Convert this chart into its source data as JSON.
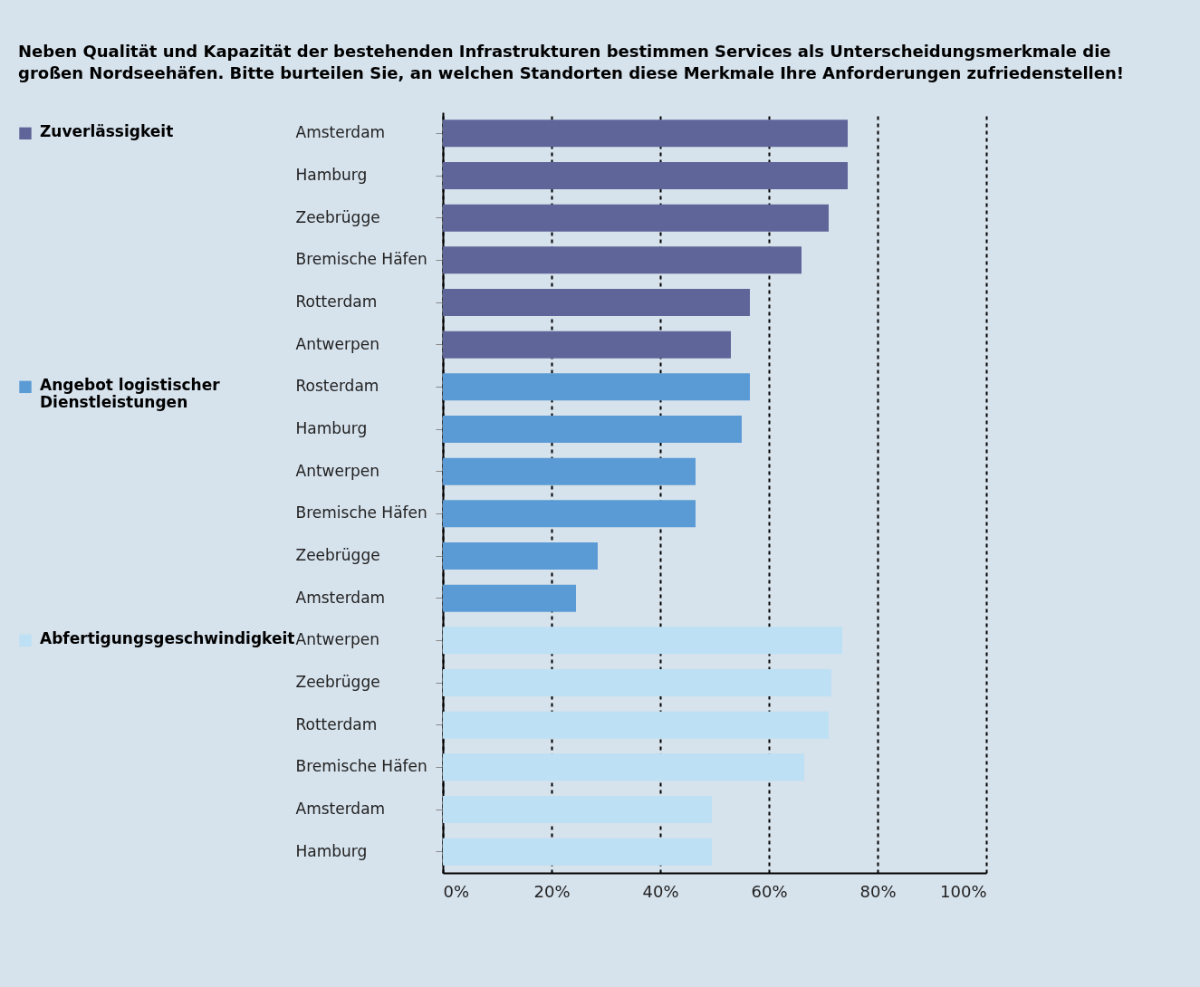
{
  "chart_data": {
    "type": "bar",
    "orientation": "horizontal",
    "title": "Neben Qualität und Kapazität der bestehenden Infrastrukturen bestimmen Services als Unterscheidungsmerkmale die großen Nordseehäfen. Bitte burteilen Sie, an welchen Standorten diese Merkmale Ihre Anforderungen zufriedenstellen!",
    "categories": [
      "Amsterdam",
      "Hamburg",
      "Zeebrügge",
      "Bremische Häfen",
      "Rotterdam",
      "Antwerpen",
      "Rosterdam",
      "Hamburg",
      "Antwerpen",
      "Bremische Häfen",
      "Zeebrügge",
      "Amsterdam",
      "Antwerpen",
      "Zeebrügge",
      "Rotterdam",
      "Bremische Häfen",
      "Amsterdam",
      "Hamburg"
    ],
    "series": [
      {
        "name": "Zuverlässigkeit",
        "color": "#5f6599",
        "values": [
          74.5,
          74.5,
          71,
          66,
          56.5,
          53,
          null,
          null,
          null,
          null,
          null,
          null,
          null,
          null,
          null,
          null,
          null,
          null
        ]
      },
      {
        "name": "Angebot logistischer Dienstleistungen",
        "color": "#5b9bd5",
        "values": [
          null,
          null,
          null,
          null,
          null,
          null,
          56.5,
          55,
          46.5,
          46.5,
          28.5,
          24.5,
          null,
          null,
          null,
          null,
          null,
          null
        ]
      },
      {
        "name": "Abfertigungsgeschwindigkeit",
        "color": "#bde0f5",
        "values": [
          null,
          null,
          null,
          null,
          null,
          null,
          null,
          null,
          null,
          null,
          null,
          null,
          73.5,
          71.5,
          71,
          66.5,
          49.5,
          49.5
        ]
      }
    ],
    "xlim": [
      0,
      100
    ],
    "xticks": [
      {
        "value": 0,
        "label": "0%"
      },
      {
        "value": 20,
        "label": "20%"
      },
      {
        "value": 40,
        "label": "40%"
      },
      {
        "value": 60,
        "label": "60%"
      },
      {
        "value": 80,
        "label": "80%"
      },
      {
        "value": 100,
        "label": "100%"
      }
    ],
    "grid": "x",
    "legend": "left"
  }
}
